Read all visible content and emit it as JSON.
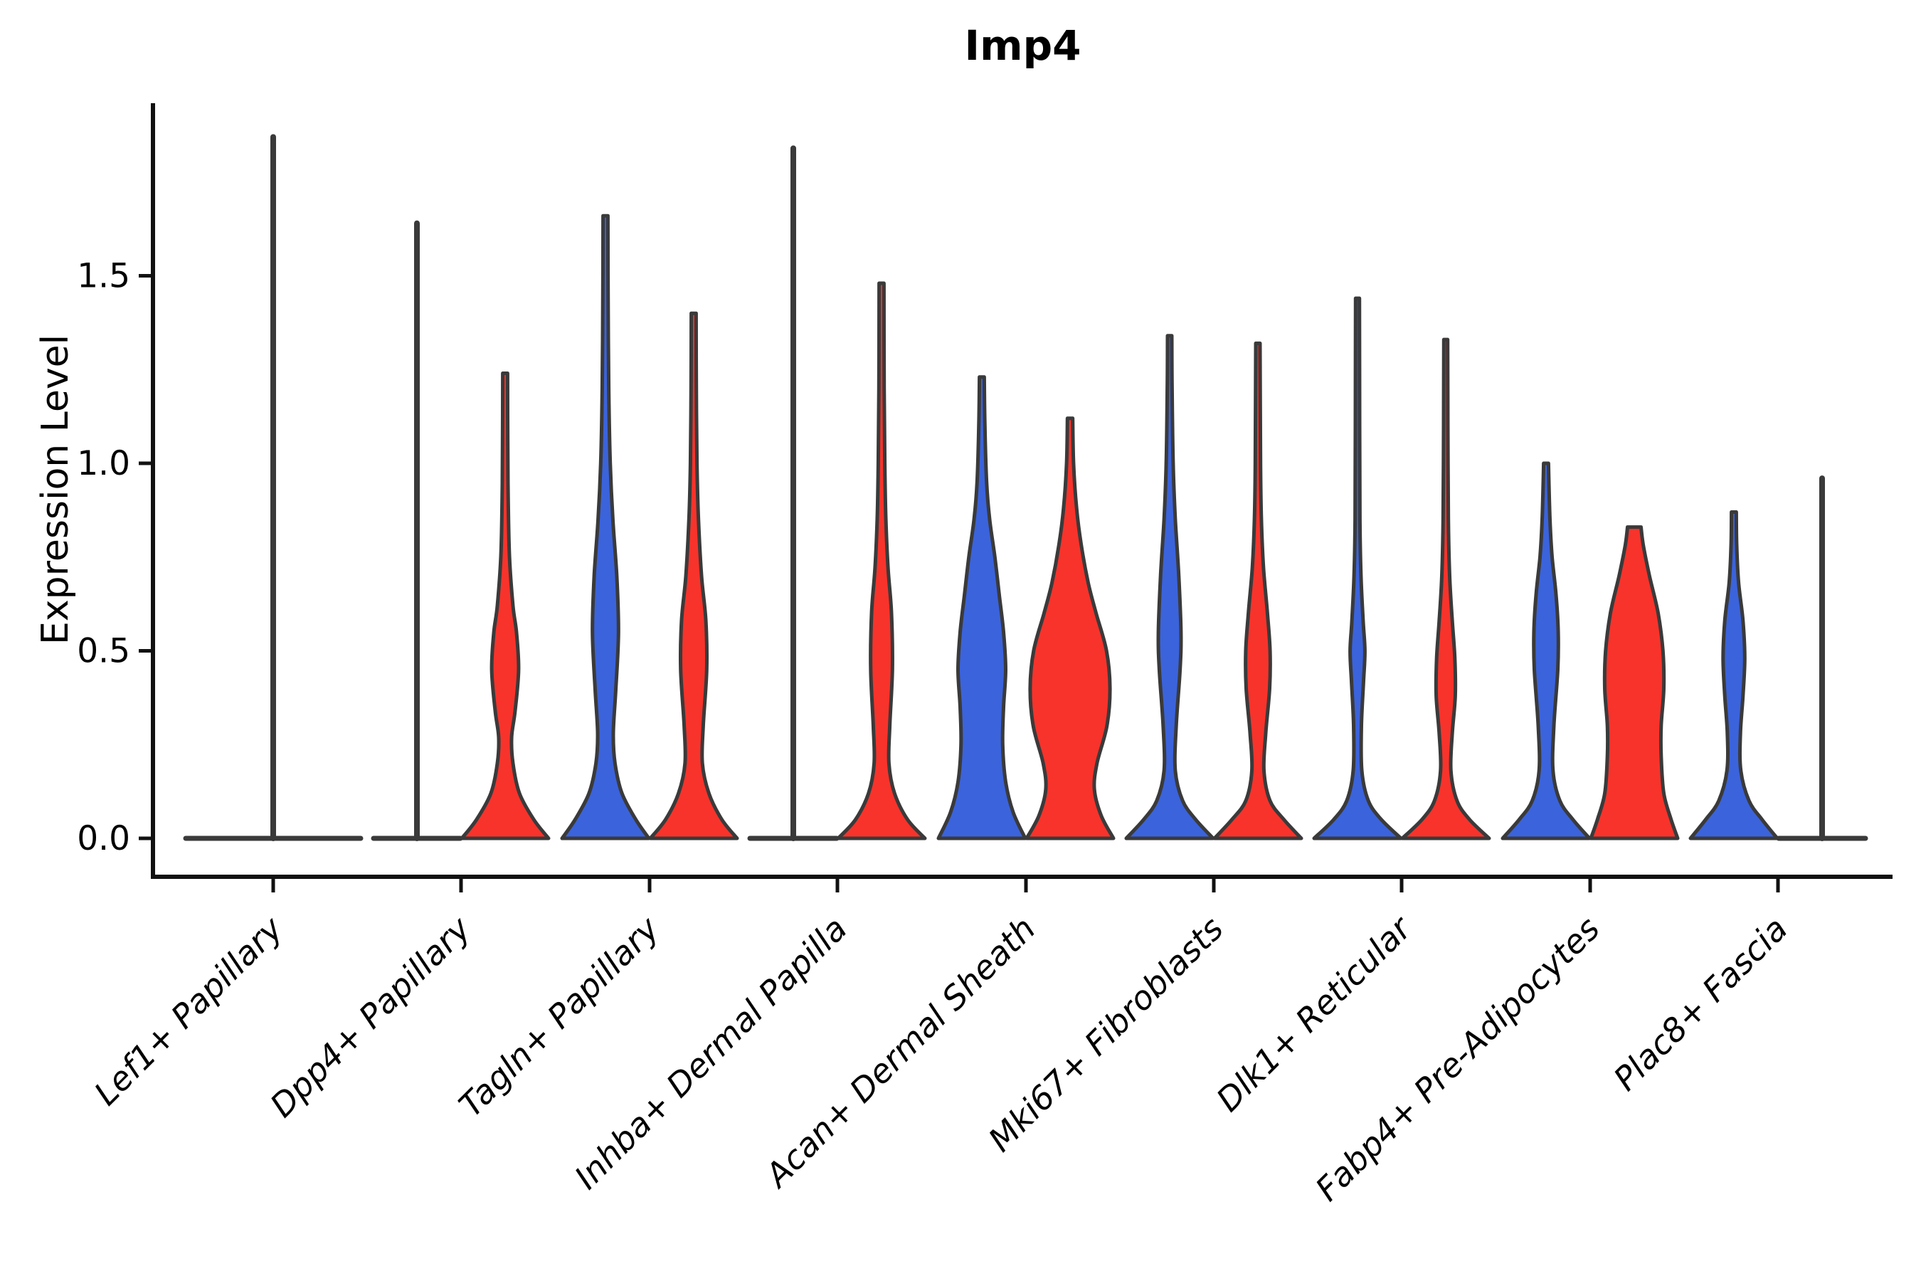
{
  "title": "Imp4",
  "y_axis": {
    "label": "Expression Level",
    "tick_labels": [
      "0.0",
      "0.5",
      "1.0",
      "1.5"
    ],
    "tick_values": [
      0.0,
      0.5,
      1.0,
      1.5
    ]
  },
  "x_axis": {
    "categories": [
      "Lef1+ Papillary",
      "Dpp4+ Papillary",
      "Tagln+ Papillary",
      "Inhba+ Dermal Papilla",
      "Acan+ Dermal Sheath",
      "Mki67+ Fibroblasts",
      "Dlk1+ Reticular",
      "Fabp4+ Pre-Adipocytes",
      "Plac8+ Fascia"
    ]
  },
  "colors": {
    "blue": "#3B63DB",
    "red": "#F8332B",
    "outline": "#3A3A3A",
    "flat_line": "#3A3A3A",
    "axis": "#111111",
    "text": "#000000"
  },
  "chart_data": {
    "type": "violin",
    "title": "Imp4",
    "xlabel": "",
    "ylabel": "Expression Level",
    "ylim": [
      -0.1,
      1.96
    ],
    "ytick_values": [
      0.0,
      0.5,
      1.0,
      1.5
    ],
    "grid": false,
    "legend": "none",
    "groups": [
      {
        "name": "group-1",
        "color": "#3B63DB",
        "side": "left"
      },
      {
        "name": "group-2",
        "color": "#F8332B",
        "side": "right"
      }
    ],
    "categories": [
      "Lef1+ Papillary",
      "Dpp4+ Papillary",
      "Tagln+ Papillary",
      "Inhba+ Dermal Papilla",
      "Acan+ Dermal Sheath",
      "Mki67+ Fibroblasts",
      "Dlk1+ Reticular",
      "Fabp4+ Pre-Adipocytes",
      "Plac8+ Fascia"
    ],
    "violins": [
      {
        "category_index": 0,
        "group": "single",
        "kind": "flat",
        "span": "full",
        "peak": 1.87
      },
      {
        "category_index": 1,
        "group": "blue",
        "kind": "flat",
        "span": "half",
        "peak": 1.64
      },
      {
        "category_index": 1,
        "group": "red",
        "kind": "curve",
        "peak": 1.24,
        "profile": [
          [
            0,
            1
          ],
          [
            0.05,
            0.66
          ],
          [
            0.12,
            0.33
          ],
          [
            0.2,
            0.18
          ],
          [
            0.27,
            0.15
          ],
          [
            0.34,
            0.23
          ],
          [
            0.45,
            0.31
          ],
          [
            0.55,
            0.26
          ],
          [
            0.62,
            0.18
          ],
          [
            0.75,
            0.1
          ],
          [
            0.9,
            0.07
          ],
          [
            1.05,
            0.06
          ],
          [
            1.24,
            0.055
          ]
        ]
      },
      {
        "category_index": 2,
        "group": "blue",
        "kind": "curve",
        "peak": 1.66,
        "profile": [
          [
            0,
            1
          ],
          [
            0.05,
            0.7
          ],
          [
            0.12,
            0.38
          ],
          [
            0.2,
            0.22
          ],
          [
            0.28,
            0.18
          ],
          [
            0.4,
            0.24
          ],
          [
            0.55,
            0.3
          ],
          [
            0.7,
            0.26
          ],
          [
            0.85,
            0.17
          ],
          [
            1.0,
            0.11
          ],
          [
            1.2,
            0.075
          ],
          [
            1.45,
            0.06
          ],
          [
            1.66,
            0.055
          ]
        ]
      },
      {
        "category_index": 2,
        "group": "red",
        "kind": "curve",
        "peak": 1.4,
        "profile": [
          [
            0,
            1
          ],
          [
            0.05,
            0.65
          ],
          [
            0.12,
            0.35
          ],
          [
            0.2,
            0.2
          ],
          [
            0.3,
            0.22
          ],
          [
            0.45,
            0.3
          ],
          [
            0.58,
            0.28
          ],
          [
            0.7,
            0.18
          ],
          [
            0.85,
            0.11
          ],
          [
            1.0,
            0.075
          ],
          [
            1.2,
            0.06
          ],
          [
            1.4,
            0.055
          ]
        ]
      },
      {
        "category_index": 3,
        "group": "blue",
        "kind": "flat",
        "span": "half",
        "peak": 1.84
      },
      {
        "category_index": 3,
        "group": "red",
        "kind": "curve",
        "peak": 1.48,
        "profile": [
          [
            0,
            1
          ],
          [
            0.05,
            0.6
          ],
          [
            0.12,
            0.3
          ],
          [
            0.2,
            0.17
          ],
          [
            0.3,
            0.19
          ],
          [
            0.45,
            0.25
          ],
          [
            0.6,
            0.23
          ],
          [
            0.72,
            0.15
          ],
          [
            0.85,
            0.1
          ],
          [
            1.0,
            0.075
          ],
          [
            1.2,
            0.06
          ],
          [
            1.48,
            0.055
          ]
        ]
      },
      {
        "category_index": 4,
        "group": "blue",
        "kind": "curve",
        "peak": 1.23,
        "profile": [
          [
            0,
            1
          ],
          [
            0.07,
            0.72
          ],
          [
            0.15,
            0.55
          ],
          [
            0.25,
            0.48
          ],
          [
            0.35,
            0.5
          ],
          [
            0.45,
            0.55
          ],
          [
            0.55,
            0.5
          ],
          [
            0.65,
            0.4
          ],
          [
            0.75,
            0.3
          ],
          [
            0.85,
            0.18
          ],
          [
            0.95,
            0.11
          ],
          [
            1.1,
            0.07
          ],
          [
            1.23,
            0.055
          ]
        ]
      },
      {
        "category_index": 4,
        "group": "red",
        "kind": "curve",
        "peak": 1.12,
        "profile": [
          [
            0,
            1
          ],
          [
            0.06,
            0.72
          ],
          [
            0.13,
            0.56
          ],
          [
            0.2,
            0.62
          ],
          [
            0.3,
            0.85
          ],
          [
            0.4,
            0.92
          ],
          [
            0.5,
            0.84
          ],
          [
            0.6,
            0.6
          ],
          [
            0.68,
            0.42
          ],
          [
            0.78,
            0.26
          ],
          [
            0.88,
            0.15
          ],
          [
            1.0,
            0.08
          ],
          [
            1.12,
            0.06
          ]
        ]
      },
      {
        "category_index": 5,
        "group": "blue",
        "kind": "curve",
        "peak": 1.34,
        "profile": [
          [
            0,
            1
          ],
          [
            0.05,
            0.6
          ],
          [
            0.1,
            0.3
          ],
          [
            0.18,
            0.13
          ],
          [
            0.3,
            0.15
          ],
          [
            0.45,
            0.24
          ],
          [
            0.55,
            0.26
          ],
          [
            0.7,
            0.21
          ],
          [
            0.85,
            0.13
          ],
          [
            1.0,
            0.08
          ],
          [
            1.2,
            0.055
          ],
          [
            1.34,
            0.05
          ]
        ]
      },
      {
        "category_index": 5,
        "group": "red",
        "kind": "curve",
        "peak": 1.32,
        "profile": [
          [
            0,
            1
          ],
          [
            0.05,
            0.6
          ],
          [
            0.1,
            0.28
          ],
          [
            0.18,
            0.14
          ],
          [
            0.28,
            0.18
          ],
          [
            0.4,
            0.27
          ],
          [
            0.5,
            0.28
          ],
          [
            0.6,
            0.22
          ],
          [
            0.72,
            0.13
          ],
          [
            0.85,
            0.08
          ],
          [
            1.0,
            0.06
          ],
          [
            1.32,
            0.05
          ]
        ]
      },
      {
        "category_index": 6,
        "group": "blue",
        "kind": "curve",
        "peak": 1.44,
        "profile": [
          [
            0,
            1
          ],
          [
            0.05,
            0.55
          ],
          [
            0.1,
            0.25
          ],
          [
            0.18,
            0.1
          ],
          [
            0.3,
            0.09
          ],
          [
            0.42,
            0.14
          ],
          [
            0.5,
            0.17
          ],
          [
            0.58,
            0.13
          ],
          [
            0.7,
            0.08
          ],
          [
            0.85,
            0.055
          ],
          [
            1.1,
            0.05
          ],
          [
            1.44,
            0.045
          ]
        ]
      },
      {
        "category_index": 6,
        "group": "red",
        "kind": "curve",
        "peak": 1.33,
        "profile": [
          [
            0,
            1
          ],
          [
            0.05,
            0.55
          ],
          [
            0.1,
            0.26
          ],
          [
            0.18,
            0.12
          ],
          [
            0.28,
            0.15
          ],
          [
            0.38,
            0.22
          ],
          [
            0.48,
            0.21
          ],
          [
            0.58,
            0.15
          ],
          [
            0.7,
            0.09
          ],
          [
            0.85,
            0.06
          ],
          [
            1.1,
            0.05
          ],
          [
            1.33,
            0.045
          ]
        ]
      },
      {
        "category_index": 7,
        "group": "blue",
        "kind": "curve",
        "peak": 1.0,
        "profile": [
          [
            0,
            1
          ],
          [
            0.05,
            0.62
          ],
          [
            0.1,
            0.32
          ],
          [
            0.18,
            0.16
          ],
          [
            0.3,
            0.18
          ],
          [
            0.45,
            0.27
          ],
          [
            0.55,
            0.28
          ],
          [
            0.65,
            0.23
          ],
          [
            0.75,
            0.14
          ],
          [
            0.85,
            0.09
          ],
          [
            1.0,
            0.055
          ]
        ]
      },
      {
        "category_index": 7,
        "group": "red",
        "kind": "curve-blunt",
        "peak": 0.83,
        "profile": [
          [
            0,
            1
          ],
          [
            0.05,
            0.85
          ],
          [
            0.12,
            0.68
          ],
          [
            0.22,
            0.62
          ],
          [
            0.3,
            0.62
          ],
          [
            0.4,
            0.68
          ],
          [
            0.5,
            0.66
          ],
          [
            0.6,
            0.55
          ],
          [
            0.7,
            0.35
          ],
          [
            0.78,
            0.21
          ],
          [
            0.83,
            0.155
          ]
        ]
      },
      {
        "category_index": 8,
        "group": "blue",
        "kind": "curve",
        "peak": 0.87,
        "profile": [
          [
            0,
            1
          ],
          [
            0.05,
            0.65
          ],
          [
            0.1,
            0.35
          ],
          [
            0.18,
            0.16
          ],
          [
            0.28,
            0.15
          ],
          [
            0.38,
            0.21
          ],
          [
            0.48,
            0.25
          ],
          [
            0.58,
            0.21
          ],
          [
            0.68,
            0.11
          ],
          [
            0.78,
            0.065
          ],
          [
            0.87,
            0.055
          ]
        ]
      },
      {
        "category_index": 8,
        "group": "red",
        "kind": "flat",
        "span": "half",
        "peak": 0.96
      }
    ]
  }
}
